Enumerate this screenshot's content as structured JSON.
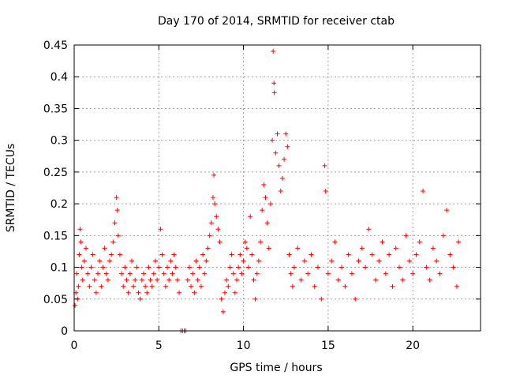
{
  "chart_data": {
    "type": "scatter",
    "title": "Day 170 of 2014, SRMTID for receiver ctab",
    "xlabel": "GPS time / hours",
    "ylabel": "SRMTID / TECUs",
    "xlim": [
      0,
      24
    ],
    "ylim": [
      0,
      0.45
    ],
    "xticks": [
      0,
      5,
      10,
      15,
      20
    ],
    "xtick_labels": [
      "0",
      "5",
      "10",
      "15",
      "20"
    ],
    "yticks": [
      0,
      0.05,
      0.1,
      0.15,
      0.2,
      0.25,
      0.3,
      0.35,
      0.4,
      0.45
    ],
    "ytick_labels": [
      "0",
      "0.05",
      "0.1",
      "0.15",
      "0.2",
      "0.25",
      "0.3",
      "0.35",
      "0.4",
      "0.45"
    ],
    "grid": true,
    "marker": "+",
    "color": "#ff0000",
    "series": [
      {
        "name": "SRMTID",
        "points": [
          [
            0.05,
            0.04
          ],
          [
            0.1,
            0.06
          ],
          [
            0.15,
            0.09
          ],
          [
            0.2,
            0.05
          ],
          [
            0.25,
            0.07
          ],
          [
            0.3,
            0.12
          ],
          [
            0.35,
            0.16
          ],
          [
            0.4,
            0.14
          ],
          [
            0.45,
            0.1
          ],
          [
            0.5,
            0.08
          ],
          [
            0.6,
            0.11
          ],
          [
            0.7,
            0.13
          ],
          [
            0.8,
            0.09
          ],
          [
            0.9,
            0.07
          ],
          [
            1.0,
            0.1
          ],
          [
            1.1,
            0.12
          ],
          [
            1.2,
            0.08
          ],
          [
            1.3,
            0.06
          ],
          [
            1.4,
            0.09
          ],
          [
            1.5,
            0.11
          ],
          [
            1.6,
            0.07
          ],
          [
            1.7,
            0.1
          ],
          [
            1.8,
            0.13
          ],
          [
            1.9,
            0.09
          ],
          [
            2.0,
            0.08
          ],
          [
            2.1,
            0.11
          ],
          [
            2.2,
            0.12
          ],
          [
            2.3,
            0.14
          ],
          [
            2.4,
            0.17
          ],
          [
            2.5,
            0.21
          ],
          [
            2.55,
            0.19
          ],
          [
            2.6,
            0.15
          ],
          [
            2.7,
            0.12
          ],
          [
            2.8,
            0.09
          ],
          [
            2.9,
            0.07
          ],
          [
            3.0,
            0.1
          ],
          [
            3.1,
            0.08
          ],
          [
            3.2,
            0.06
          ],
          [
            3.3,
            0.09
          ],
          [
            3.4,
            0.11
          ],
          [
            3.5,
            0.07
          ],
          [
            3.6,
            0.08
          ],
          [
            3.7,
            0.1
          ],
          [
            3.8,
            0.06
          ],
          [
            3.9,
            0.05
          ],
          [
            4.0,
            0.08
          ],
          [
            4.1,
            0.09
          ],
          [
            4.2,
            0.07
          ],
          [
            4.3,
            0.06
          ],
          [
            4.4,
            0.1
          ],
          [
            4.5,
            0.08
          ],
          [
            4.6,
            0.07
          ],
          [
            4.7,
            0.09
          ],
          [
            4.8,
            0.11
          ],
          [
            4.9,
            0.08
          ],
          [
            5.0,
            0.1
          ],
          [
            5.1,
            0.16
          ],
          [
            5.2,
            0.12
          ],
          [
            5.3,
            0.09
          ],
          [
            5.4,
            0.07
          ],
          [
            5.5,
            0.1
          ],
          [
            5.6,
            0.08
          ],
          [
            5.7,
            0.11
          ],
          [
            5.8,
            0.09
          ],
          [
            5.9,
            0.12
          ],
          [
            6.0,
            0.1
          ],
          [
            6.1,
            0.08
          ],
          [
            6.2,
            0.06
          ],
          [
            6.3,
            0.0
          ],
          [
            6.4,
            0.0
          ],
          [
            6.5,
            0.0
          ],
          [
            6.6,
            0.0
          ],
          [
            6.7,
            0.08
          ],
          [
            6.8,
            0.1
          ],
          [
            6.9,
            0.07
          ],
          [
            7.0,
            0.09
          ],
          [
            7.1,
            0.06
          ],
          [
            7.2,
            0.11
          ],
          [
            7.3,
            0.08
          ],
          [
            7.4,
            0.1
          ],
          [
            7.5,
            0.07
          ],
          [
            7.6,
            0.12
          ],
          [
            7.7,
            0.09
          ],
          [
            7.8,
            0.11
          ],
          [
            7.9,
            0.13
          ],
          [
            8.0,
            0.15
          ],
          [
            8.1,
            0.17
          ],
          [
            8.2,
            0.21
          ],
          [
            8.25,
            0.245
          ],
          [
            8.3,
            0.2
          ],
          [
            8.4,
            0.18
          ],
          [
            8.5,
            0.16
          ],
          [
            8.6,
            0.14
          ],
          [
            8.7,
            0.05
          ],
          [
            8.8,
            0.03
          ],
          [
            8.9,
            0.06
          ],
          [
            9.0,
            0.08
          ],
          [
            9.1,
            0.07
          ],
          [
            9.2,
            0.1
          ],
          [
            9.3,
            0.12
          ],
          [
            9.4,
            0.09
          ],
          [
            9.5,
            0.06
          ],
          [
            9.6,
            0.08
          ],
          [
            9.7,
            0.1
          ],
          [
            9.8,
            0.12
          ],
          [
            9.9,
            0.09
          ],
          [
            10.0,
            0.11
          ],
          [
            10.1,
            0.14
          ],
          [
            10.2,
            0.13
          ],
          [
            10.3,
            0.1
          ],
          [
            10.4,
            0.18
          ],
          [
            10.5,
            0.12
          ],
          [
            10.6,
            0.08
          ],
          [
            10.7,
            0.05
          ],
          [
            10.8,
            0.09
          ],
          [
            10.9,
            0.11
          ],
          [
            11.0,
            0.14
          ],
          [
            11.1,
            0.19
          ],
          [
            11.2,
            0.23
          ],
          [
            11.3,
            0.21
          ],
          [
            11.4,
            0.17
          ],
          [
            11.5,
            0.13
          ],
          [
            11.6,
            0.2
          ],
          [
            11.7,
            0.3
          ],
          [
            11.75,
            0.44
          ],
          [
            11.8,
            0.39
          ],
          [
            11.82,
            0.375
          ],
          [
            11.9,
            0.28
          ],
          [
            12.0,
            0.31
          ],
          [
            12.1,
            0.26
          ],
          [
            12.2,
            0.22
          ],
          [
            12.3,
            0.24
          ],
          [
            12.4,
            0.27
          ],
          [
            12.5,
            0.31
          ],
          [
            12.6,
            0.29
          ],
          [
            12.7,
            0.12
          ],
          [
            12.8,
            0.09
          ],
          [
            12.9,
            0.07
          ],
          [
            13.0,
            0.1
          ],
          [
            13.2,
            0.13
          ],
          [
            13.4,
            0.08
          ],
          [
            13.6,
            0.11
          ],
          [
            13.8,
            0.09
          ],
          [
            14.0,
            0.12
          ],
          [
            14.2,
            0.07
          ],
          [
            14.4,
            0.1
          ],
          [
            14.6,
            0.05
          ],
          [
            14.8,
            0.26
          ],
          [
            14.85,
            0.22
          ],
          [
            15.0,
            0.09
          ],
          [
            15.2,
            0.11
          ],
          [
            15.4,
            0.14
          ],
          [
            15.6,
            0.08
          ],
          [
            15.8,
            0.1
          ],
          [
            16.0,
            0.07
          ],
          [
            16.2,
            0.12
          ],
          [
            16.4,
            0.09
          ],
          [
            16.6,
            0.05
          ],
          [
            16.8,
            0.11
          ],
          [
            17.0,
            0.13
          ],
          [
            17.2,
            0.1
          ],
          [
            17.4,
            0.16
          ],
          [
            17.6,
            0.12
          ],
          [
            17.8,
            0.08
          ],
          [
            18.0,
            0.11
          ],
          [
            18.2,
            0.14
          ],
          [
            18.4,
            0.09
          ],
          [
            18.6,
            0.12
          ],
          [
            18.8,
            0.07
          ],
          [
            19.0,
            0.13
          ],
          [
            19.2,
            0.1
          ],
          [
            19.4,
            0.08
          ],
          [
            19.6,
            0.15
          ],
          [
            19.8,
            0.11
          ],
          [
            20.0,
            0.09
          ],
          [
            20.2,
            0.12
          ],
          [
            20.4,
            0.14
          ],
          [
            20.6,
            0.22
          ],
          [
            20.8,
            0.1
          ],
          [
            21.0,
            0.08
          ],
          [
            21.2,
            0.13
          ],
          [
            21.4,
            0.11
          ],
          [
            21.6,
            0.09
          ],
          [
            21.8,
            0.15
          ],
          [
            22.0,
            0.19
          ],
          [
            22.2,
            0.12
          ],
          [
            22.4,
            0.1
          ],
          [
            22.6,
            0.07
          ],
          [
            22.7,
            0.14
          ]
        ]
      }
    ]
  }
}
